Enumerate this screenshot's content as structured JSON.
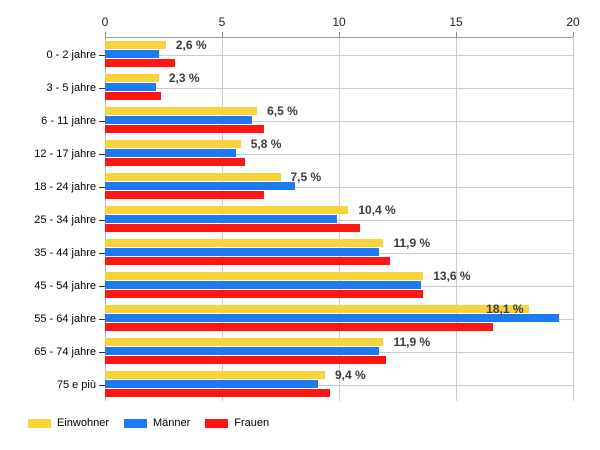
{
  "chart_data": {
    "type": "bar",
    "orientation": "horizontal",
    "title": "",
    "xlabel": "",
    "ylabel": "",
    "xlim": [
      0,
      20
    ],
    "x_ticks": [
      0,
      5,
      10,
      15,
      20
    ],
    "grid": true,
    "legend_position": "bottom-left",
    "categories": [
      "0 - 2 jahre",
      "3 - 5 jahre",
      "6 - 11 jahre",
      "12 - 17 jahre",
      "18 - 24 jahre",
      "25 - 34 jahre",
      "35 - 44 jahre",
      "45 - 54 jahre",
      "55 - 64 jahre",
      "65 - 74 jahre",
      "75 e più"
    ],
    "series": [
      {
        "name": "Einwohner",
        "color": "#F8D33A",
        "values": [
          2.6,
          2.3,
          6.5,
          5.8,
          7.5,
          10.4,
          11.9,
          13.6,
          18.1,
          11.9,
          9.4
        ]
      },
      {
        "name": "Männer",
        "color": "#1E7AF0",
        "values": [
          2.3,
          2.2,
          6.3,
          5.6,
          8.1,
          9.9,
          11.7,
          13.5,
          19.4,
          11.7,
          9.1
        ]
      },
      {
        "name": "Frauen",
        "color": "#FF1512",
        "values": [
          3.0,
          2.4,
          6.8,
          6.0,
          6.8,
          10.9,
          12.2,
          13.6,
          16.6,
          12.0,
          9.6
        ]
      }
    ],
    "annotations": [
      "2,6 %",
      "2,3 %",
      "6,5 %",
      "5,8 %",
      "7,5 %",
      "10,4 %",
      "11,9 %",
      "13,6 %",
      "18,1 %",
      "11,9 %",
      "9,4 %"
    ],
    "annotated_series": "Einwohner",
    "colors": {
      "gridline": "#cccccc",
      "axis_line": "#9a9a9a",
      "tick_text": "#1f1f1f",
      "annotation_text": "#3b3b3b"
    }
  }
}
